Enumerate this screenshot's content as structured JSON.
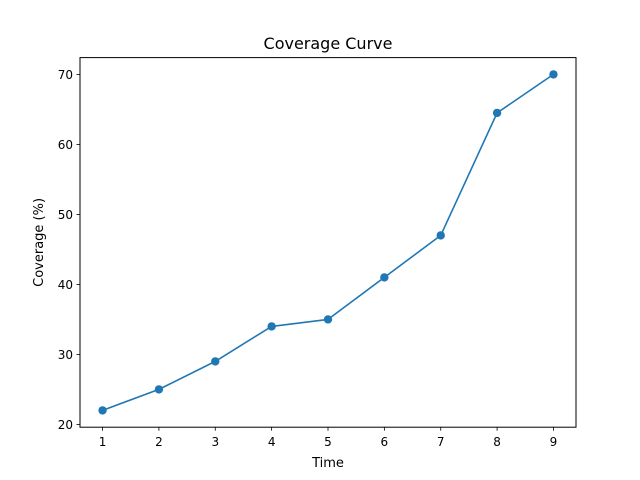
{
  "chart_data": {
    "type": "line",
    "title": "Coverage Curve",
    "xlabel": "Time",
    "ylabel": "Coverage (%)",
    "x": [
      1,
      2,
      3,
      4,
      5,
      6,
      7,
      8,
      9
    ],
    "series": [
      {
        "values": [
          22,
          25,
          29,
          34,
          35,
          41,
          47,
          64.5,
          70
        ],
        "color": "#1f77b4",
        "marker": "circle"
      }
    ],
    "xlim": [
      0.6,
      9.4
    ],
    "ylim": [
      19.6,
      72.4
    ],
    "xticks": [
      1,
      2,
      3,
      4,
      5,
      6,
      7,
      8,
      9
    ],
    "yticks": [
      20,
      30,
      40,
      50,
      60,
      70
    ],
    "grid": false,
    "legend": "none"
  }
}
